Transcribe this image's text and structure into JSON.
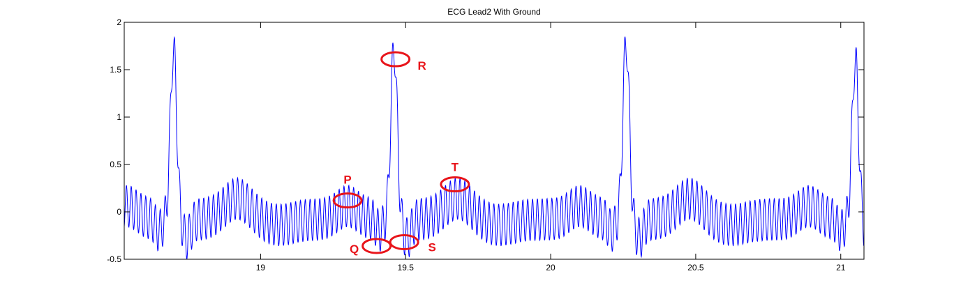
{
  "chart_data": {
    "type": "line",
    "title": "ECG Lead2 With Ground",
    "xlabel": "",
    "ylabel": "",
    "xlim": [
      18.53,
      21.08
    ],
    "ylim": [
      -0.5,
      2
    ],
    "xticks": [
      19,
      19.5,
      20,
      20.5,
      21
    ],
    "xtick_labels": [
      "19",
      "19.5",
      "20",
      "20.5",
      "21"
    ],
    "yticks": [
      -0.5,
      0,
      0.5,
      1,
      1.5,
      2
    ],
    "ytick_labels": [
      "-0.5",
      "0",
      "0.5",
      "1",
      "1.5",
      "2"
    ],
    "grid": false,
    "line_color": "#0000ff",
    "noise_frequency_hz": 60,
    "noise_amplitude": 0.1,
    "beats": [
      {
        "r_time": 18.7,
        "r_peak": 1.63
      },
      {
        "r_time": 19.46,
        "r_peak": 1.65
      },
      {
        "r_time": 20.26,
        "r_peak": 1.72
      },
      {
        "r_time": 21.05,
        "r_peak": 1.52
      }
    ],
    "annotations": [
      {
        "label": "P",
        "x": 19.3,
        "y": 0.12,
        "color": "#e8141a"
      },
      {
        "label": "Q",
        "x": 19.4,
        "y": -0.36,
        "color": "#e8141a"
      },
      {
        "label": "R",
        "x": 19.465,
        "y": 1.61,
        "color": "#e8141a"
      },
      {
        "label": "S",
        "x": 19.495,
        "y": -0.32,
        "color": "#e8141a"
      },
      {
        "label": "T",
        "x": 19.67,
        "y": 0.29,
        "color": "#e8141a"
      }
    ]
  }
}
